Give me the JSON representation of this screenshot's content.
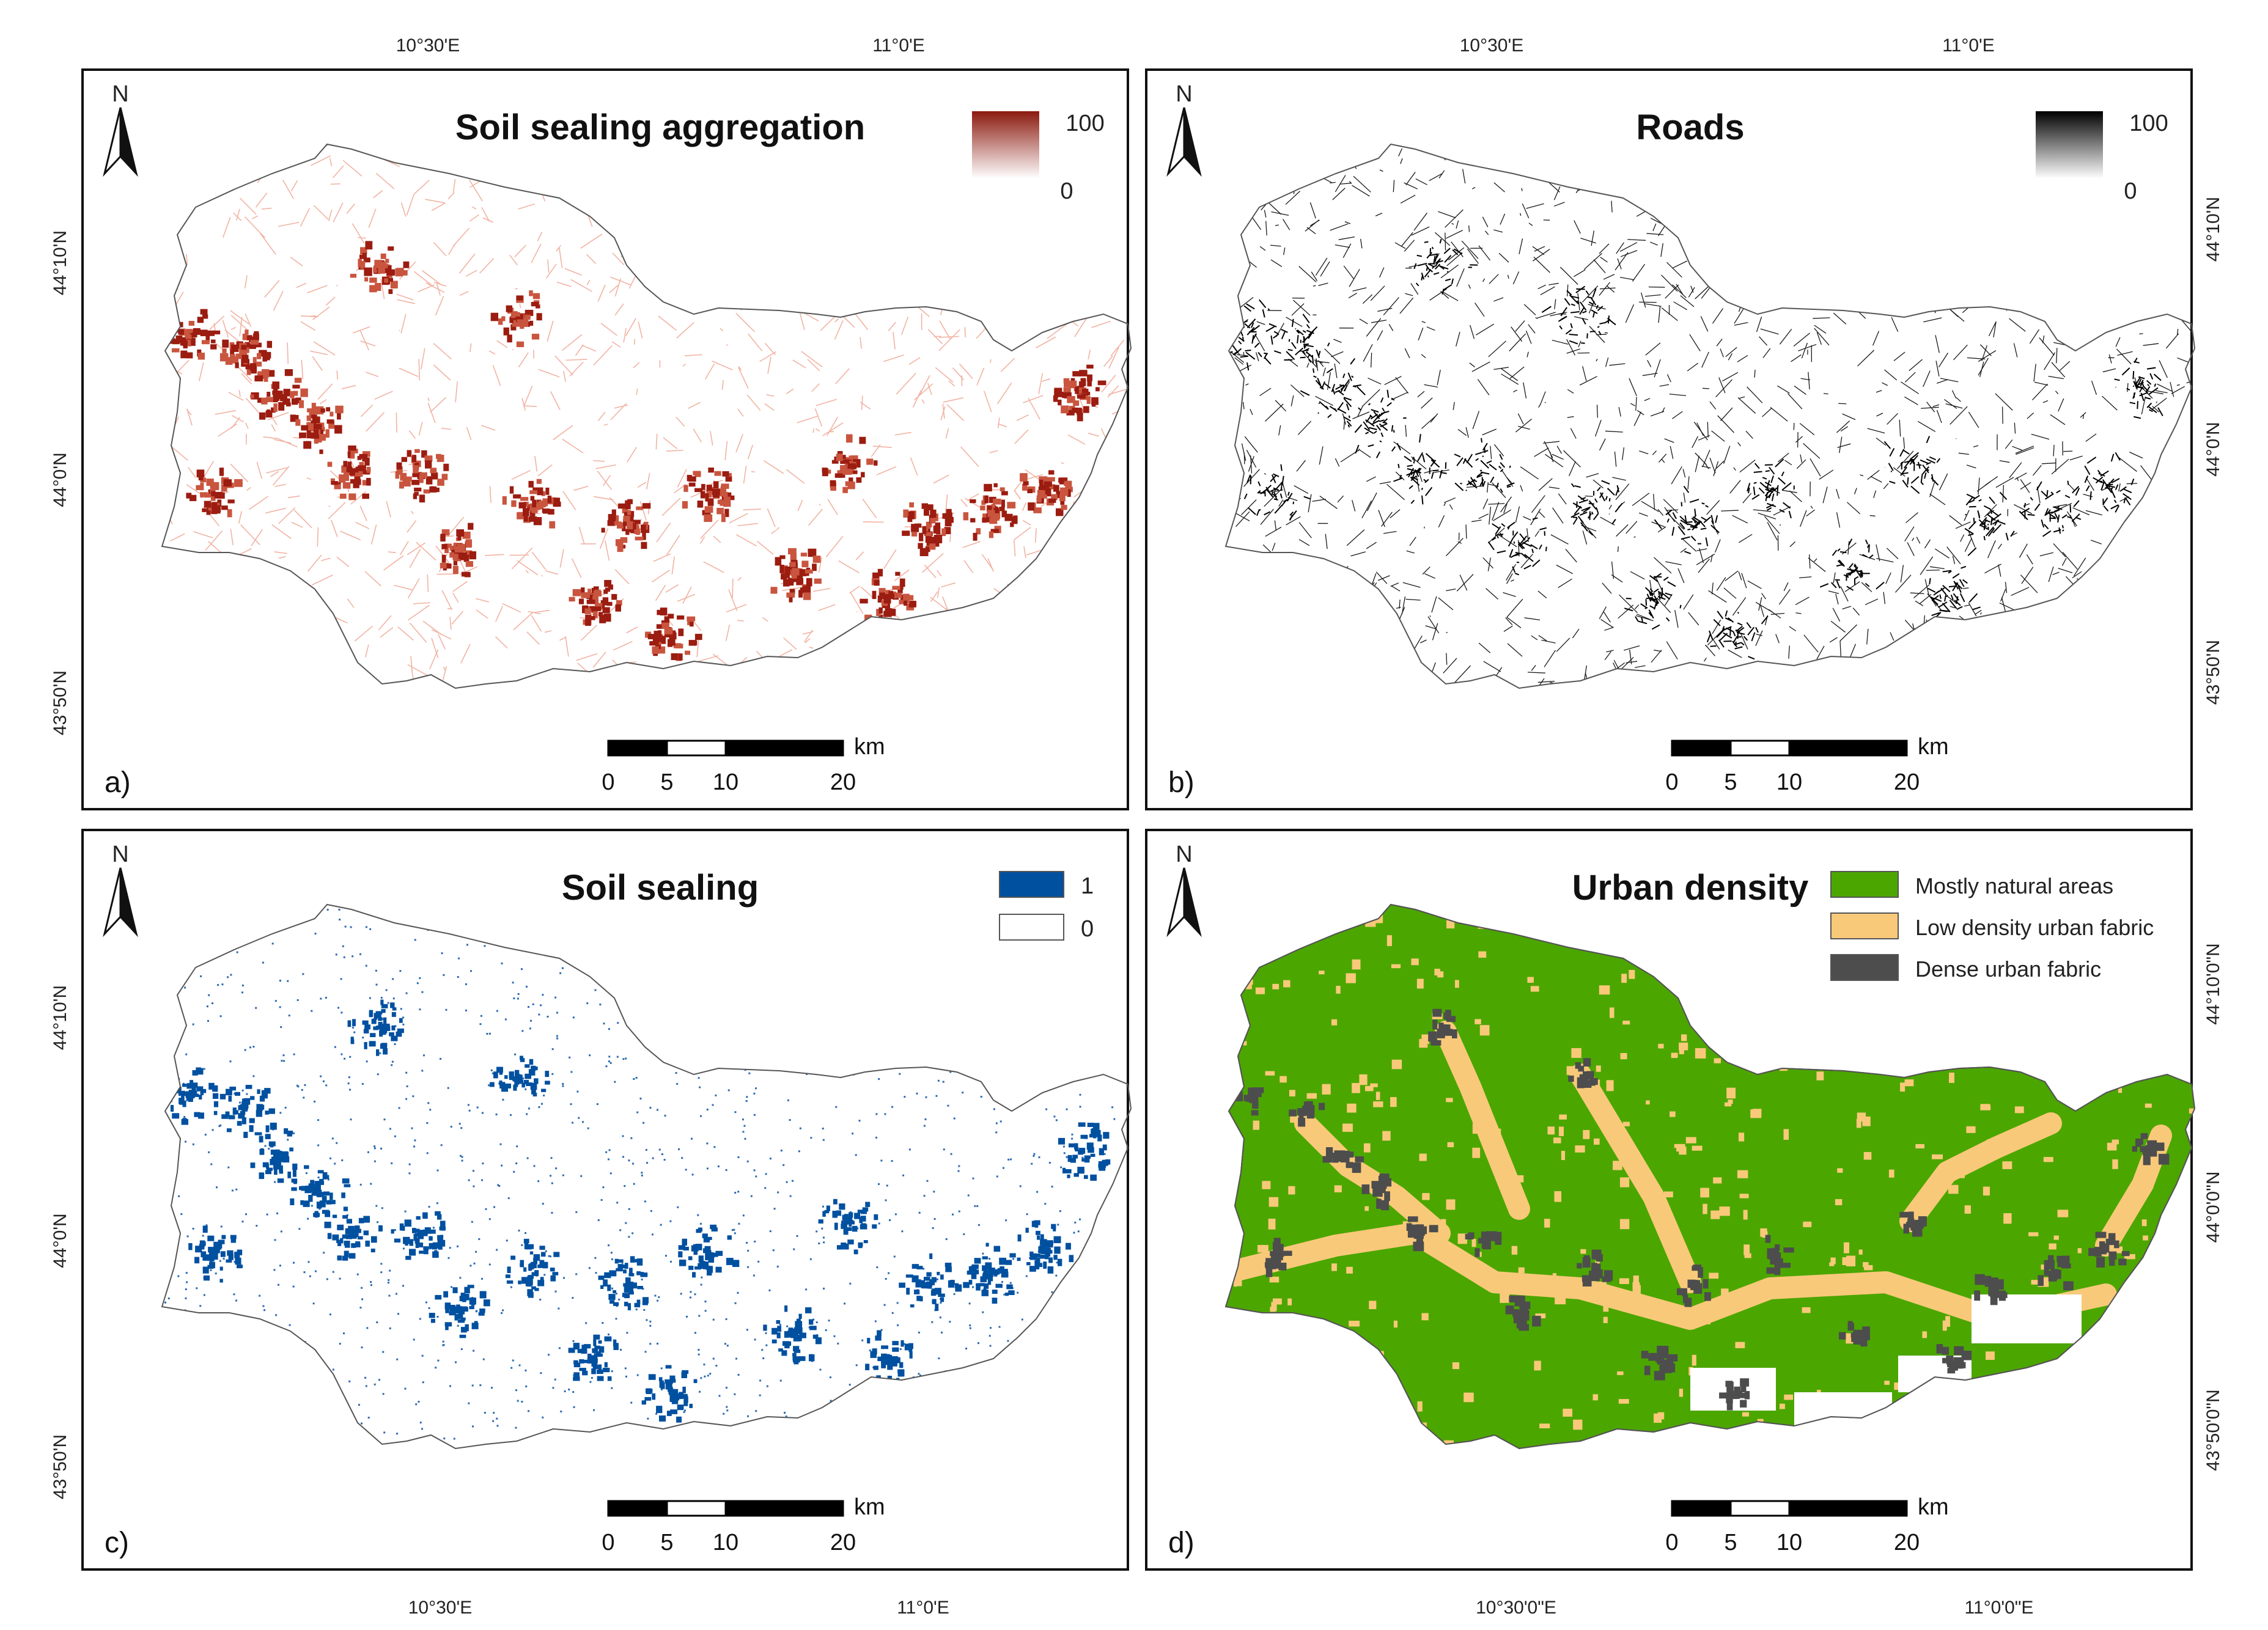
{
  "grid_labels": {
    "lon_1030": "10°30'E",
    "lon_1100": "11°0'E",
    "lon_1030_full": "10°30'0\"E",
    "lon_1100_full": "11°0'0\"E",
    "lat_4410": "44°10'N",
    "lat_4400": "44°0'N",
    "lat_4350": "43°50'N",
    "lat_4410_full": "44°10'0\"N",
    "lat_4400_full": "44°0'0\"N",
    "lat_4350_full": "43°50'0\"N"
  },
  "north_arrow": {
    "label": "N"
  },
  "scale_bar": {
    "unit": "km",
    "ticks": [
      "0",
      "5",
      "10",
      "20"
    ]
  },
  "panels": [
    {
      "letter": "a)",
      "title": "Soil sealing aggregation",
      "legend": {
        "type": "gradient",
        "max": "100",
        "min": "0",
        "color_high": "#8b1a0f",
        "color_low": "#ffffff"
      }
    },
    {
      "letter": "b)",
      "title": "Roads",
      "legend": {
        "type": "gradient",
        "max": "100",
        "min": "0",
        "color_high": "#000000",
        "color_low": "#ffffff"
      }
    },
    {
      "letter": "c)",
      "title": "Soil sealing",
      "legend": {
        "type": "classes",
        "items": [
          {
            "label": "1",
            "color": "#0050a0"
          },
          {
            "label": "0",
            "color": "#ffffff"
          }
        ]
      }
    },
    {
      "letter": "d)",
      "title": "Urban density",
      "legend": {
        "type": "classes",
        "items": [
          {
            "label": "Mostly natural areas",
            "color": "#4ca600"
          },
          {
            "label": "Low density urban fabric",
            "color": "#f9c97a"
          },
          {
            "label": "Dense urban fabric",
            "color": "#4d4d4d"
          }
        ]
      }
    }
  ]
}
